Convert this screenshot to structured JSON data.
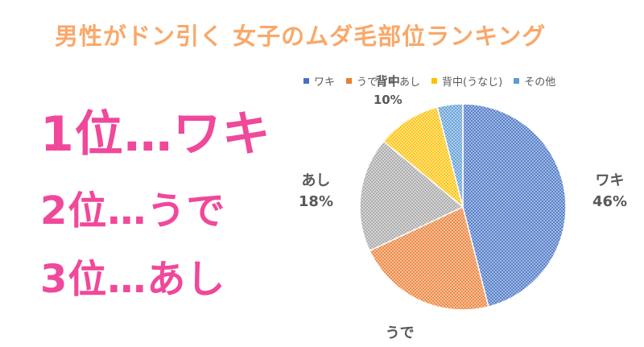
{
  "title": "男性がドン引く 女子のムダ毛部位ランキング",
  "rankings": [
    "1位…ワキ",
    "2位…うで",
    "3位…あし"
  ],
  "chart_data": {
    "type": "pie",
    "categories": [
      "ワキ",
      "うで",
      "あし",
      "背中(うなじ)",
      "その他"
    ],
    "values": [
      46,
      22,
      18,
      10,
      4
    ],
    "colors": [
      "#4472c4",
      "#ed7d31",
      "#a5a5a5",
      "#ffc000",
      "#5b9bd5"
    ],
    "data_labels": [
      {
        "name": "ワキ",
        "value": "46%"
      },
      {
        "name": "うで",
        "value": "22%"
      },
      {
        "name": "あし",
        "value": "18%"
      },
      {
        "name": "背中",
        "value": "10%"
      },
      {
        "name": "",
        "value": ""
      }
    ],
    "legend_position": "top"
  }
}
